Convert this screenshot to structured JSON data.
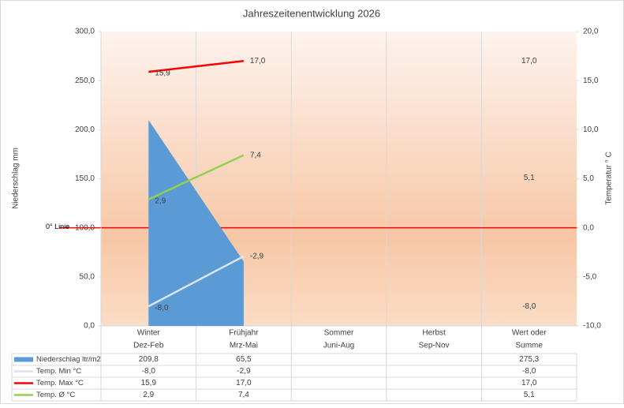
{
  "chart_data": {
    "type": "area-line-table",
    "title": "Jahreszeitenentwicklung 2026",
    "y_label": "Niederschlag mm",
    "y2_label": "Temperatur ° C",
    "categories": [
      [
        "Winter",
        "Dez-Feb"
      ],
      [
        "Frühjahr",
        "Mrz-Mai"
      ],
      [
        "Sommer",
        "Juni-Aug"
      ],
      [
        "Herbst",
        "Sep-Nov"
      ],
      [
        "Wert oder",
        "Summe"
      ]
    ],
    "ylim": [
      0,
      300
    ],
    "yticks": [
      {
        "value": 0,
        "label": "0,0"
      },
      {
        "value": 50,
        "label": "50,0"
      },
      {
        "value": 100,
        "label": "100,0"
      },
      {
        "value": 150,
        "label": "150,0"
      },
      {
        "value": 200,
        "label": "200,0"
      },
      {
        "value": 250,
        "label": "250,0"
      },
      {
        "value": 300,
        "label": "300,0"
      }
    ],
    "y2lim": [
      -10,
      20
    ],
    "y2ticks": [
      {
        "value": -10,
        "label": "-10,0"
      },
      {
        "value": -5,
        "label": "-5,0"
      },
      {
        "value": 0,
        "label": "0,0"
      },
      {
        "value": 5,
        "label": "5,0"
      },
      {
        "value": 10,
        "label": "10,0"
      },
      {
        "value": 15,
        "label": "15,0"
      },
      {
        "value": 20,
        "label": "20,0"
      }
    ],
    "reference_line": {
      "label": "0° Linie",
      "value": 0,
      "color": "#ff0000"
    },
    "series": [
      {
        "name": "Niederschlag ltr/m2",
        "kind": "area",
        "color": "#5b9bd5",
        "values": [
          209.8,
          65.5,
          null,
          null,
          275.3
        ],
        "value_labels": [
          "209,8",
          "65,5",
          null,
          null,
          "275,3"
        ]
      },
      {
        "name": "Temp. Min °C",
        "kind": "line",
        "axis": "y2",
        "color": "#dae3f3",
        "values": [
          -8.0,
          -2.9,
          null,
          null,
          -8.0
        ],
        "value_labels": [
          "-8,0",
          "-2,9",
          null,
          null,
          "-8,0"
        ]
      },
      {
        "name": "Temp. Max °C",
        "kind": "line",
        "axis": "y2",
        "color": "#ff0000",
        "values": [
          15.9,
          17.0,
          null,
          null,
          17.0
        ],
        "value_labels": [
          "15,9",
          "17,0",
          null,
          null,
          "17,0"
        ]
      },
      {
        "name": "Temp. Ø °C",
        "kind": "line",
        "axis": "y2",
        "color": "#92d050",
        "values": [
          2.9,
          7.4,
          null,
          null,
          5.1
        ],
        "value_labels": [
          "2,9",
          "7,4",
          null,
          null,
          "5,1"
        ]
      }
    ]
  }
}
